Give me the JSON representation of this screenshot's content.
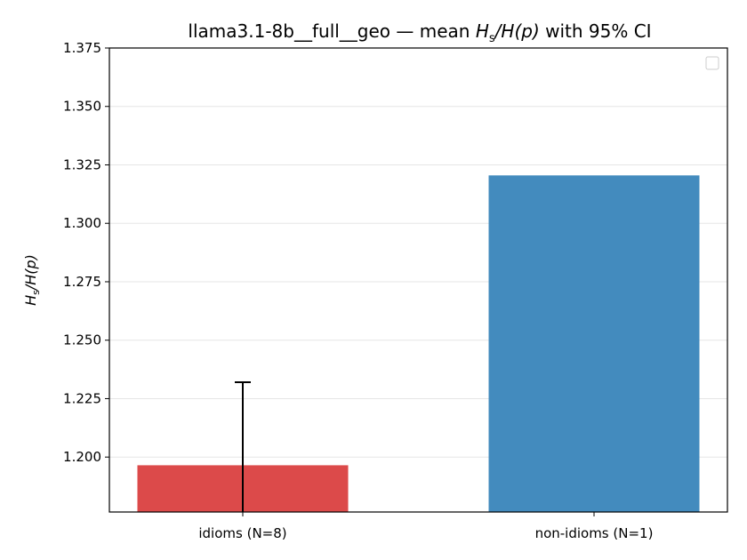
{
  "chart_data": {
    "type": "bar",
    "title_plain": "llama3.1-8b__full__geo — mean ",
    "title_math_1": "H",
    "title_math_sub": "s",
    "title_math_2": "/H(p)",
    "title_suffix": " with 95% CI",
    "ylabel_main": "H",
    "ylabel_sub": "s",
    "ylabel_rest": "/H(p)",
    "categories": [
      "idioms (N=8)",
      "non-idioms (N=1)"
    ],
    "values": [
      1.1965,
      1.3205
    ],
    "errors": [
      {
        "low": null,
        "high": 1.232
      },
      null
    ],
    "colors": [
      "#dc4a4a",
      "#438bbe"
    ],
    "ylim": [
      1.1765,
      1.375
    ],
    "yticks": [
      1.2,
      1.225,
      1.25,
      1.275,
      1.3,
      1.325,
      1.35,
      1.375
    ],
    "ytick_labels": [
      "1.200",
      "1.225",
      "1.250",
      "1.275",
      "1.300",
      "1.325",
      "1.350",
      "1.375"
    ],
    "grid": true,
    "legend": "top-right (empty)"
  }
}
